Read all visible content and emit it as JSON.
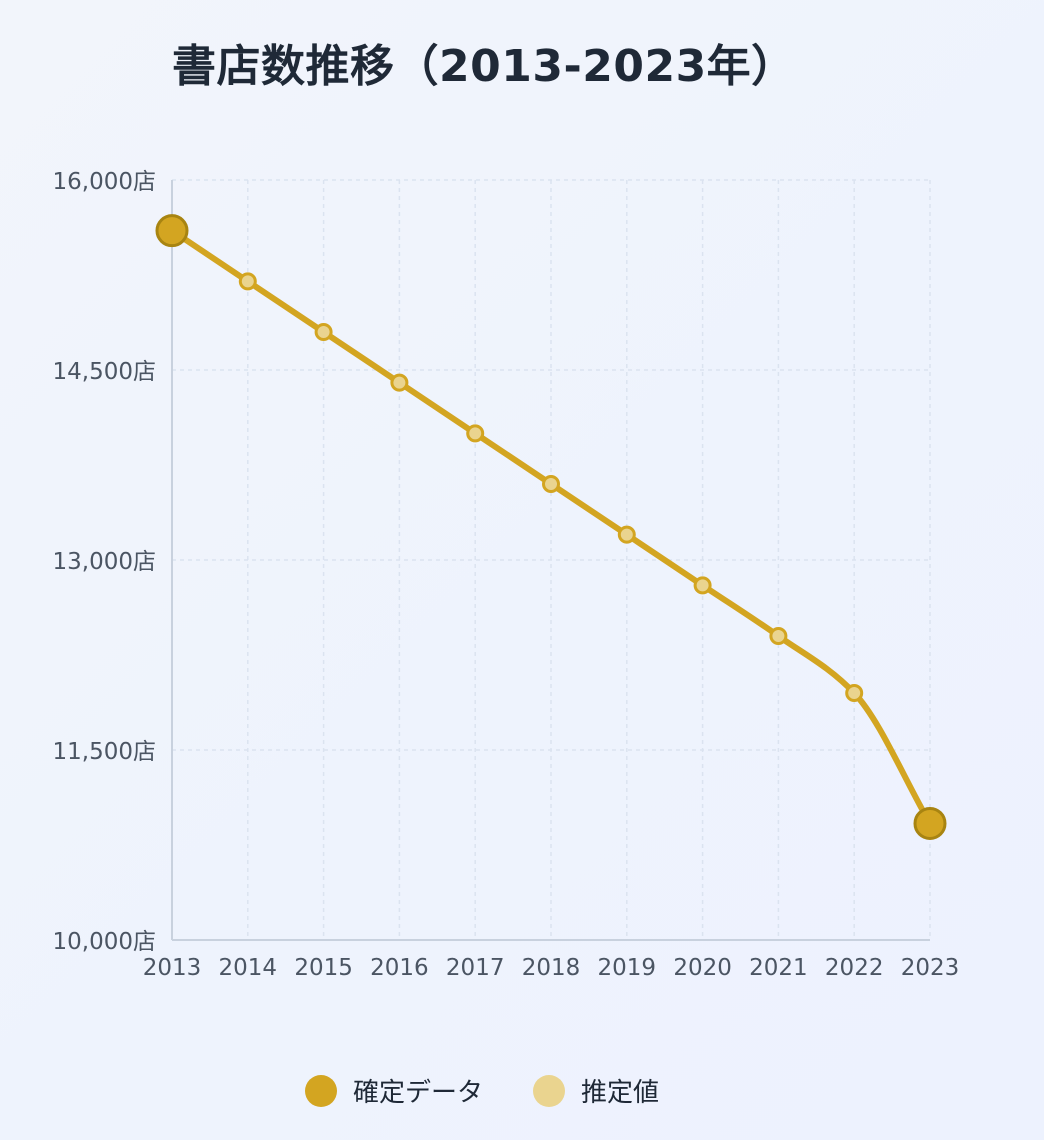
{
  "chart_data": {
    "type": "line",
    "title": "書店数推移（2013-2023年）",
    "x": [
      "2013",
      "2014",
      "2015",
      "2016",
      "2017",
      "2018",
      "2019",
      "2020",
      "2021",
      "2022",
      "2023"
    ],
    "y_unit": "店",
    "ylim": [
      10000,
      16000
    ],
    "yticks": [
      10000,
      11500,
      13000,
      14500,
      16000
    ],
    "ytick_labels": [
      "10,000店",
      "11,500店",
      "13,000店",
      "14,500店",
      "16,000店"
    ],
    "grid": true,
    "legend_position": "bottom",
    "series": [
      {
        "values": [
          15600,
          15200,
          14800,
          14400,
          14000,
          13600,
          13200,
          12800,
          12400,
          11950,
          10920
        ],
        "point_types": [
          "confirmed",
          "estimated",
          "estimated",
          "estimated",
          "estimated",
          "estimated",
          "estimated",
          "estimated",
          "estimated",
          "estimated",
          "confirmed"
        ]
      }
    ],
    "legend": [
      {
        "key": "confirmed",
        "label": "確定データ",
        "color": "#d3a521"
      },
      {
        "key": "estimated",
        "label": "推定値",
        "color": "#ead48f"
      }
    ],
    "colors": {
      "line": "#d3a521",
      "confirmed_stroke": "#a88411",
      "estimated_fill": "#ead48f",
      "estimated_stroke": "#d3a521",
      "grid": "#dbe3f0",
      "axis": "#c8d1de"
    }
  }
}
